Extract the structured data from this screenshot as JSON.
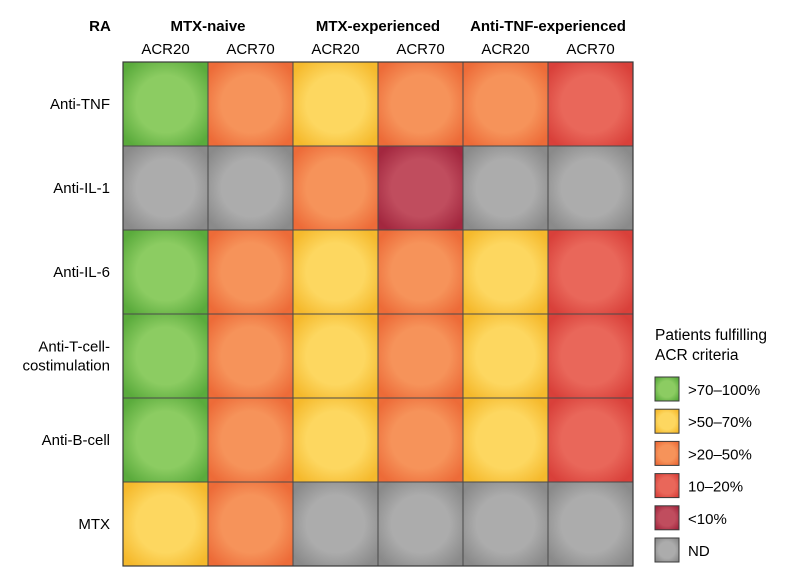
{
  "chart_data": {
    "type": "heatmap",
    "corner_label": "RA",
    "groups": [
      "MTX-naive",
      "MTX-experienced",
      "Anti-TNF-experienced"
    ],
    "columns": [
      "ACR20",
      "ACR70",
      "ACR20",
      "ACR70",
      "ACR20",
      "ACR70"
    ],
    "rows": [
      {
        "label": [
          "Anti-TNF"
        ],
        "cells": [
          ">70–100%",
          ">20–50%",
          ">50–70%",
          ">20–50%",
          ">20–50%",
          "10–20%"
        ]
      },
      {
        "label": [
          "Anti-IL-1"
        ],
        "cells": [
          "ND",
          "ND",
          ">20–50%",
          "<10%",
          "ND",
          "ND"
        ]
      },
      {
        "label": [
          "Anti-IL-6"
        ],
        "cells": [
          ">70–100%",
          ">20–50%",
          ">50–70%",
          ">20–50%",
          ">50–70%",
          "10–20%"
        ]
      },
      {
        "label": [
          "Anti-T-cell-",
          "costimulation"
        ],
        "cells": [
          ">70–100%",
          ">20–50%",
          ">50–70%",
          ">20–50%",
          ">50–70%",
          "10–20%"
        ]
      },
      {
        "label": [
          "Anti-B-cell"
        ],
        "cells": [
          ">70–100%",
          ">20–50%",
          ">50–70%",
          ">20–50%",
          ">50–70%",
          "10–20%"
        ]
      },
      {
        "label": [
          "MTX"
        ],
        "cells": [
          ">50–70%",
          ">20–50%",
          "ND",
          "ND",
          "ND",
          "ND"
        ]
      }
    ],
    "legend": {
      "title": [
        "Patients fulfilling",
        "ACR criteria"
      ],
      "items": [
        {
          "label": ">70–100%",
          "color": "#5aab3c",
          "center": "#8ccc62"
        },
        {
          "label": ">50–70%",
          "color": "#f5b92c",
          "center": "#fdd760"
        },
        {
          "label": ">20–50%",
          "color": "#ed6b38",
          "center": "#f6935a"
        },
        {
          "label": "10–20%",
          "color": "#d9403a",
          "center": "#e9675a"
        },
        {
          "label": "<10%",
          "color": "#a3273f",
          "center": "#c04d5e"
        },
        {
          "label": "ND",
          "color": "#8a8a8a",
          "center": "#acacac"
        }
      ]
    }
  }
}
